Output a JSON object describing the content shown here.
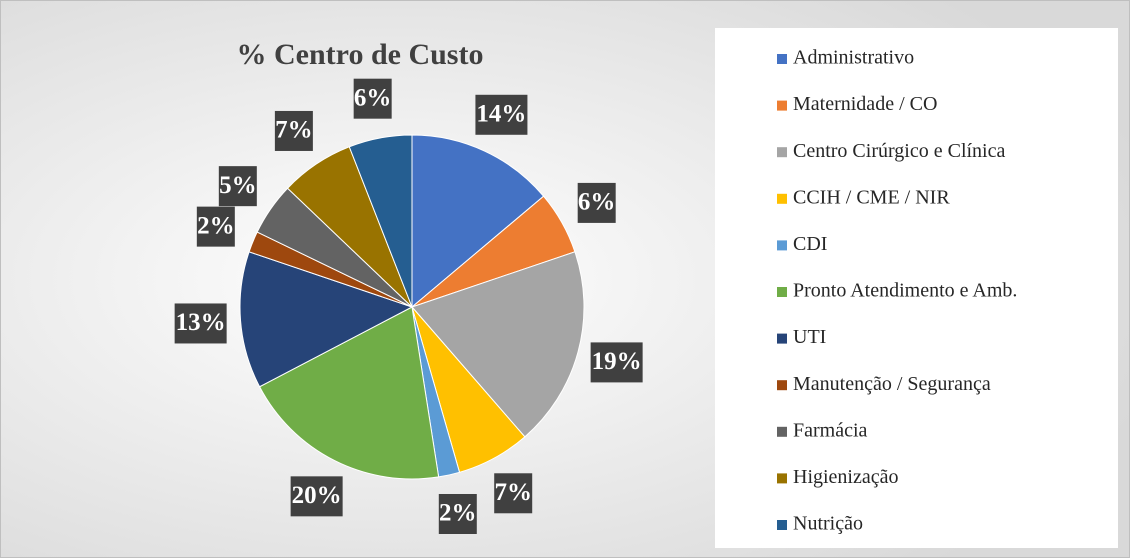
{
  "chart_data": {
    "type": "pie",
    "title": "% Centro de Custo",
    "categories": [
      "Administrativo",
      "Maternidade / CO",
      "Centro Cirúrgico e Clínica",
      "CCIH / CME / NIR",
      "CDI",
      "Pronto Atendimento e Amb.",
      "UTI",
      "Manutenção / Segurança",
      "Farmácia",
      "Higienização",
      "Nutrição"
    ],
    "values": [
      14,
      6,
      19,
      7,
      2,
      20,
      13,
      2,
      5,
      7,
      6
    ],
    "value_labels": [
      "14%",
      "6%",
      "19%",
      "7%",
      "2%",
      "20%",
      "13%",
      "2%",
      "5%",
      "7%",
      "6%"
    ],
    "colors": [
      "#4472c4",
      "#ed7d31",
      "#a5a5a5",
      "#ffc000",
      "#5b9bd5",
      "#70ad47",
      "#264478",
      "#9e480e",
      "#636363",
      "#997300",
      "#255e91"
    ],
    "legend": "right"
  }
}
